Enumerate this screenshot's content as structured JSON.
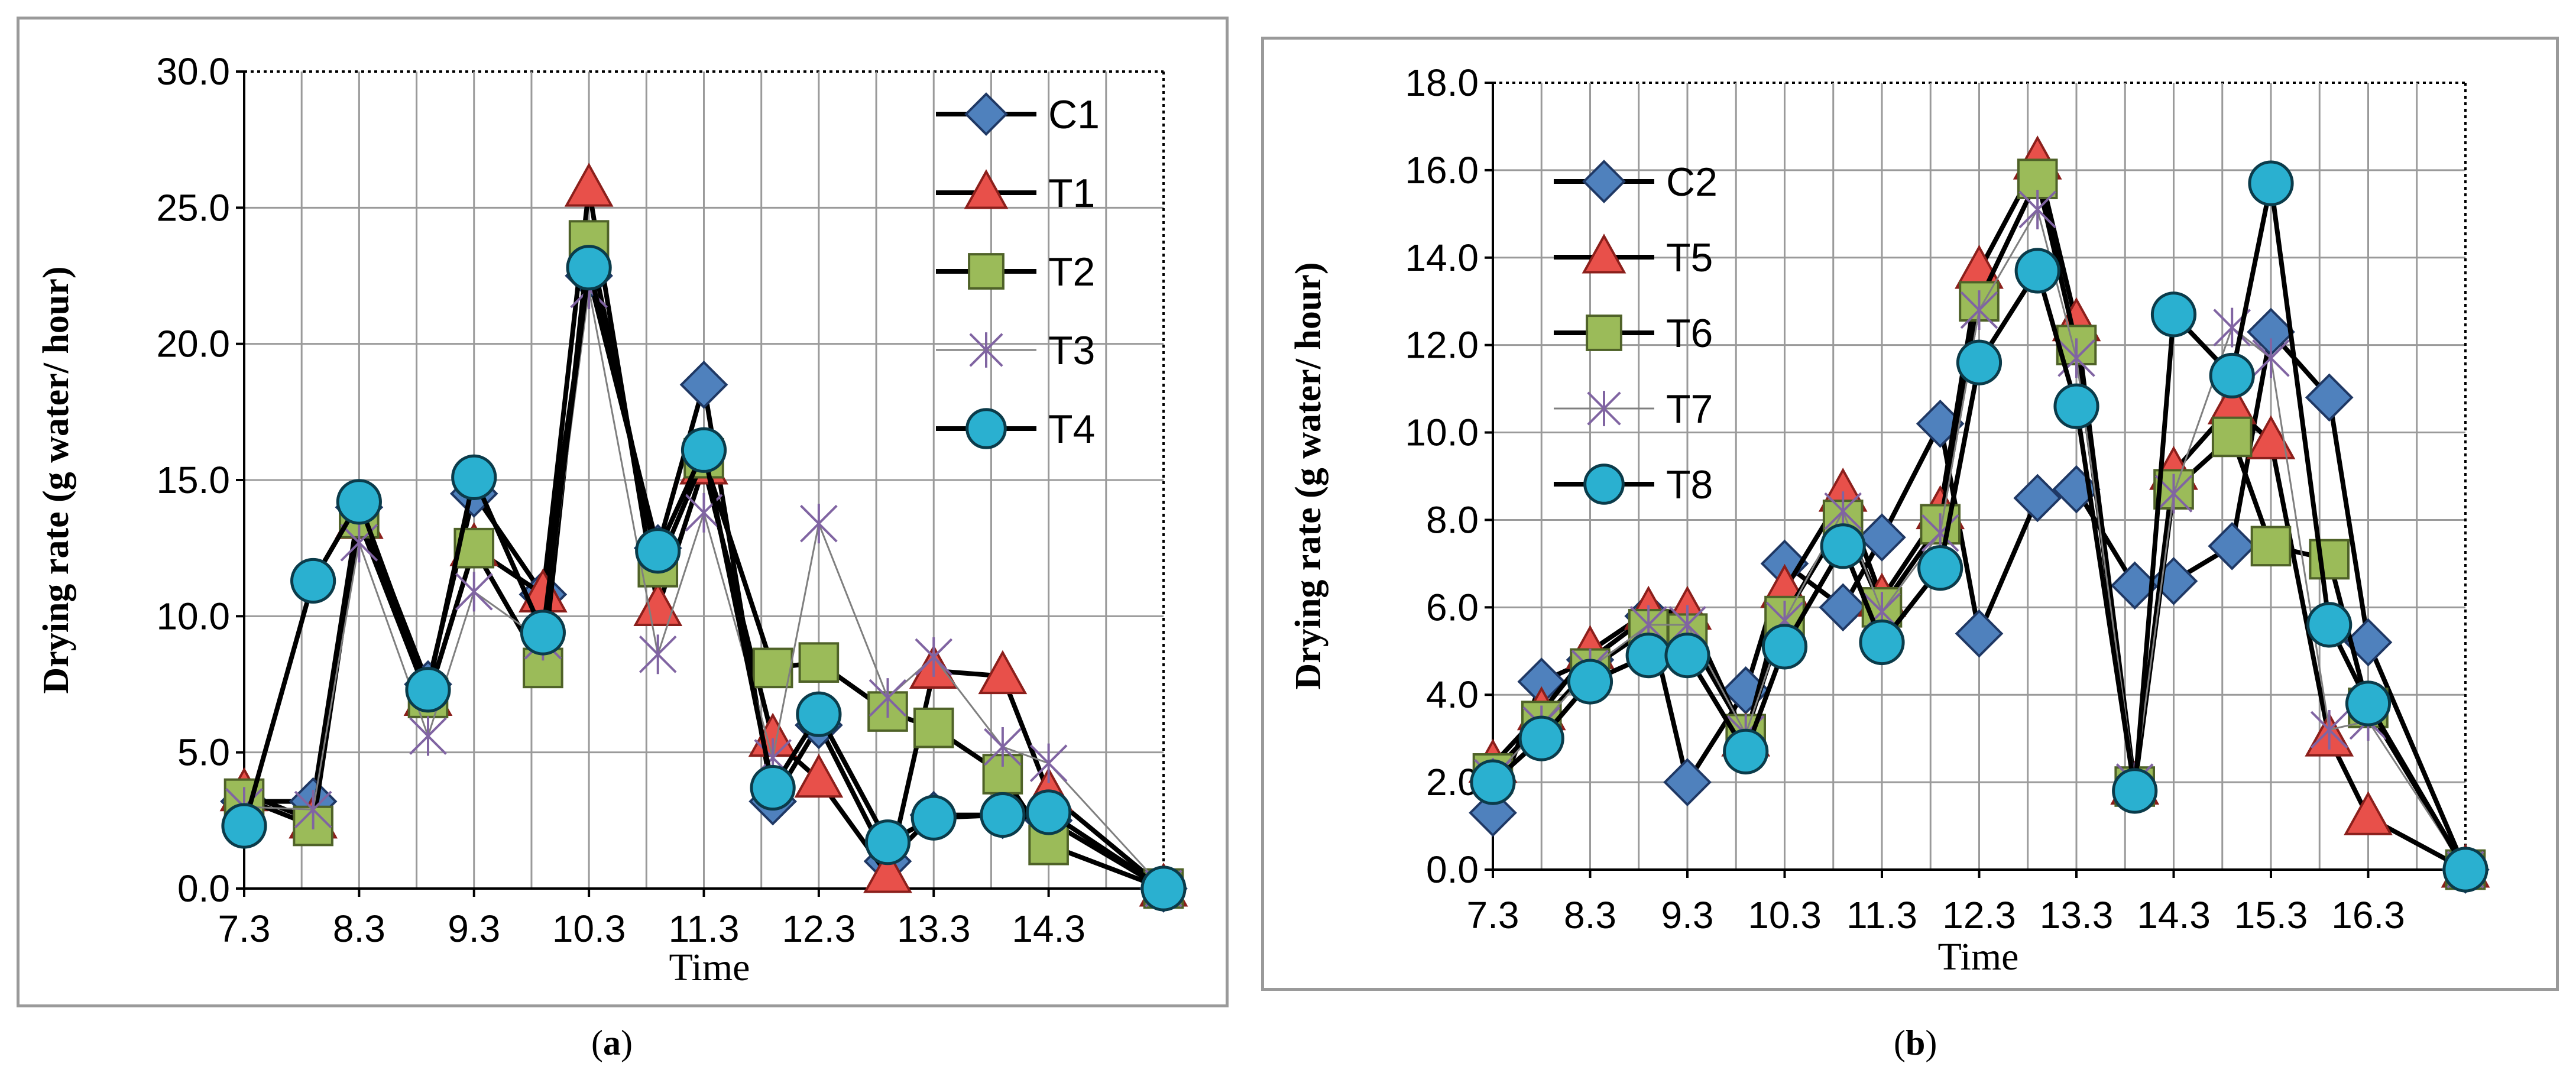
{
  "figure": {
    "captions": [
      "(a)",
      "(b)"
    ]
  },
  "marker_styles": {
    "diamond": {
      "fill": "#4f81bd",
      "stroke": "#1f3864"
    },
    "triangle": {
      "fill": "#e8504a",
      "stroke": "#8b1f1b"
    },
    "square": {
      "fill": "#9bbb59",
      "stroke": "#4f6228"
    },
    "star": {
      "fill": "none",
      "stroke": "#8064a2"
    },
    "circle": {
      "fill": "#2ab0d0",
      "stroke": "#0b3b4a"
    }
  },
  "chart_data": [
    {
      "type": "line",
      "title": "",
      "xlabel": "Time",
      "ylabel": "Drying rate (g water/ hour)",
      "ylim": [
        0,
        30
      ],
      "yticks": [
        "0.0",
        "5.0",
        "10.0",
        "15.0",
        "20.0",
        "25.0",
        "30.0"
      ],
      "xlim": [
        7.3,
        15.3
      ],
      "xtick_labels": [
        "7.3",
        "8.3",
        "9.3",
        "10.3",
        "11.3",
        "12.3",
        "13.3",
        "14.3"
      ],
      "grid": true,
      "legend_position": "top-right",
      "series": [
        {
          "name": "C1",
          "marker": "diamond",
          "x": [
            7.3,
            7.9,
            8.3,
            8.9,
            9.3,
            9.9,
            10.3,
            10.9,
            11.3,
            11.9,
            12.3,
            12.9,
            13.3,
            13.9,
            14.3,
            15.3
          ],
          "y": [
            3.2,
            3.2,
            14.0,
            7.5,
            14.5,
            10.8,
            22.5,
            12.5,
            18.5,
            3.2,
            6.0,
            1.0,
            2.7,
            2.7,
            2.5,
            0.0
          ]
        },
        {
          "name": "T1",
          "marker": "triangle",
          "x": [
            7.3,
            7.9,
            8.3,
            8.9,
            9.3,
            9.9,
            10.3,
            10.9,
            11.3,
            11.9,
            12.3,
            12.9,
            13.3,
            13.9,
            14.3,
            15.3
          ],
          "y": [
            3.5,
            2.5,
            13.5,
            7.0,
            12.5,
            10.8,
            25.7,
            10.3,
            15.5,
            5.5,
            4.0,
            0.5,
            8.0,
            7.8,
            3.5,
            0.0
          ]
        },
        {
          "name": "T2",
          "marker": "square",
          "x": [
            7.3,
            7.9,
            8.3,
            8.9,
            9.3,
            9.9,
            10.3,
            10.9,
            11.3,
            11.9,
            12.3,
            12.9,
            13.3,
            13.9,
            14.3,
            15.3
          ],
          "y": [
            3.3,
            2.3,
            13.6,
            7.0,
            12.5,
            8.1,
            23.8,
            11.8,
            15.8,
            8.1,
            8.3,
            6.5,
            5.9,
            4.2,
            1.6,
            0.0
          ]
        },
        {
          "name": "T3",
          "marker": "star",
          "x": [
            7.3,
            7.9,
            8.3,
            8.9,
            9.3,
            9.9,
            10.3,
            10.9,
            11.3,
            11.9,
            12.3,
            12.9,
            13.3,
            13.9,
            14.3,
            15.3
          ],
          "y": [
            3.0,
            2.9,
            12.7,
            5.6,
            10.9,
            9.1,
            22.0,
            8.6,
            13.8,
            4.8,
            13.4,
            7.0,
            8.5,
            5.2,
            4.6,
            0.0
          ]
        },
        {
          "name": "T4",
          "marker": "circle",
          "x": [
            7.3,
            7.9,
            8.3,
            8.9,
            9.3,
            9.9,
            10.3,
            10.9,
            11.3,
            11.9,
            12.3,
            12.9,
            13.3,
            13.9,
            14.3,
            15.3
          ],
          "y": [
            2.3,
            11.3,
            14.2,
            7.3,
            15.1,
            9.4,
            22.8,
            12.4,
            16.1,
            3.7,
            6.4,
            1.7,
            2.6,
            2.7,
            2.8,
            0.0
          ]
        }
      ]
    },
    {
      "type": "line",
      "title": "",
      "xlabel": "Time",
      "ylabel": "Drying rate (g water/ hour)",
      "ylim": [
        0,
        18
      ],
      "yticks": [
        "0.0",
        "2.0",
        "4.0",
        "6.0",
        "8.0",
        "10.0",
        "12.0",
        "14.0",
        "16.0",
        "18.0"
      ],
      "xlim": [
        7.3,
        17.3
      ],
      "xtick_labels": [
        "7.3",
        "8.3",
        "9.3",
        "10.3",
        "11.3",
        "12.3",
        "13.3",
        "14.3",
        "15.3",
        "16.3"
      ],
      "grid": true,
      "legend_position": "top-left",
      "series": [
        {
          "name": "C2",
          "marker": "diamond",
          "x": [
            7.3,
            7.8,
            8.3,
            8.9,
            9.3,
            9.9,
            10.3,
            10.9,
            11.3,
            11.9,
            12.3,
            12.9,
            13.3,
            13.9,
            14.3,
            14.9,
            15.3,
            15.9,
            16.3,
            17.3
          ],
          "y": [
            1.3,
            4.3,
            4.8,
            5.8,
            2.0,
            4.1,
            7.0,
            6.0,
            7.6,
            10.2,
            5.4,
            8.5,
            8.7,
            6.5,
            6.6,
            7.4,
            12.3,
            10.8,
            5.2,
            0.0
          ]
        },
        {
          "name": "T5",
          "marker": "triangle",
          "x": [
            7.3,
            7.8,
            8.3,
            8.9,
            9.3,
            9.9,
            10.3,
            10.9,
            11.3,
            11.9,
            12.3,
            12.9,
            13.3,
            13.9,
            14.3,
            14.9,
            15.3,
            15.9,
            16.3,
            17.3
          ],
          "y": [
            2.4,
            3.6,
            5.0,
            5.9,
            5.9,
            3.0,
            6.4,
            8.6,
            6.2,
            8.2,
            13.7,
            16.2,
            12.5,
            1.9,
            9.1,
            10.6,
            9.8,
            3.0,
            1.2,
            0.0
          ]
        },
        {
          "name": "T6",
          "marker": "square",
          "x": [
            7.3,
            7.8,
            8.3,
            8.9,
            9.3,
            9.9,
            10.3,
            10.9,
            11.3,
            11.9,
            12.3,
            12.9,
            13.3,
            13.9,
            14.3,
            14.9,
            15.3,
            15.9,
            16.3,
            17.3
          ],
          "y": [
            2.2,
            3.4,
            4.6,
            5.5,
            5.4,
            3.1,
            5.8,
            8.0,
            6.0,
            7.9,
            13.0,
            15.8,
            12.0,
            1.9,
            8.7,
            9.9,
            7.4,
            7.1,
            3.7,
            0.0
          ]
        },
        {
          "name": "T7",
          "marker": "star",
          "x": [
            7.3,
            7.8,
            8.3,
            8.9,
            9.3,
            9.9,
            10.3,
            10.9,
            11.3,
            11.9,
            12.3,
            12.9,
            13.3,
            13.9,
            14.3,
            14.9,
            15.3,
            15.9,
            16.3,
            17.3
          ],
          "y": [
            2.1,
            3.3,
            4.6,
            5.6,
            5.6,
            3.1,
            5.7,
            8.2,
            5.9,
            7.7,
            12.8,
            15.1,
            11.7,
            2.0,
            8.6,
            12.4,
            11.7,
            3.2,
            3.4,
            0.0
          ]
        },
        {
          "name": "T8",
          "marker": "circle",
          "x": [
            7.3,
            7.8,
            8.3,
            8.9,
            9.3,
            9.9,
            10.3,
            10.9,
            11.3,
            11.9,
            12.3,
            12.9,
            13.3,
            13.9,
            14.3,
            14.9,
            15.3,
            15.9,
            16.3,
            17.3
          ],
          "y": [
            2.0,
            3.0,
            4.3,
            4.9,
            4.9,
            2.7,
            5.1,
            7.4,
            5.2,
            6.9,
            11.6,
            13.7,
            10.6,
            1.8,
            12.7,
            11.3,
            15.7,
            5.6,
            3.8,
            0.0
          ]
        }
      ]
    }
  ]
}
